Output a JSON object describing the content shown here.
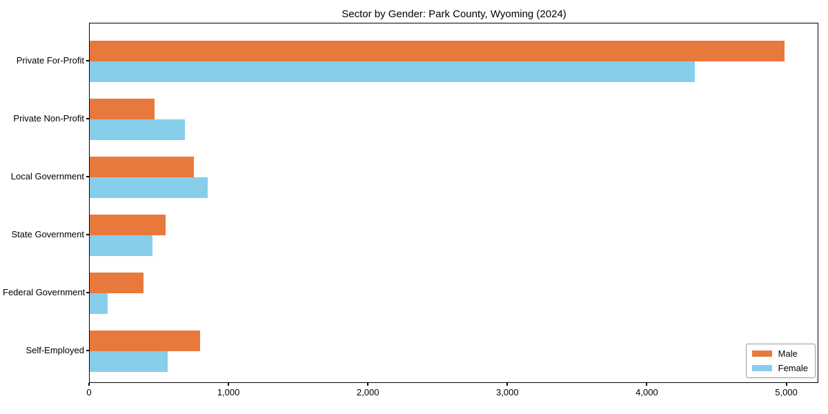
{
  "chart_data": {
    "type": "bar",
    "orientation": "horizontal",
    "title": "Sector by Gender: Park County, Wyoming (2024)",
    "categories": [
      "Private For-Profit",
      "Private Non-Profit",
      "Local Government",
      "State Government",
      "Federal Government",
      "Self-Employed"
    ],
    "series": [
      {
        "name": "Male",
        "color": "#e8793c",
        "values": [
          4984,
          465,
          746,
          545,
          388,
          790
        ]
      },
      {
        "name": "Female",
        "color": "#87ceeb",
        "values": [
          4340,
          683,
          845,
          449,
          126,
          559
        ]
      }
    ],
    "xlabel": "",
    "ylabel": "",
    "xlim": [
      0,
      5230
    ],
    "xticks": [
      {
        "value": 0,
        "label": "0"
      },
      {
        "value": 1000,
        "label": "1,000"
      },
      {
        "value": 2000,
        "label": "2,000"
      },
      {
        "value": 3000,
        "label": "3,000"
      },
      {
        "value": 4000,
        "label": "4,000"
      },
      {
        "value": 5000,
        "label": "5,000"
      }
    ],
    "grid": false,
    "legend": {
      "position": "lower right",
      "entries": [
        "Male",
        "Female"
      ]
    }
  }
}
